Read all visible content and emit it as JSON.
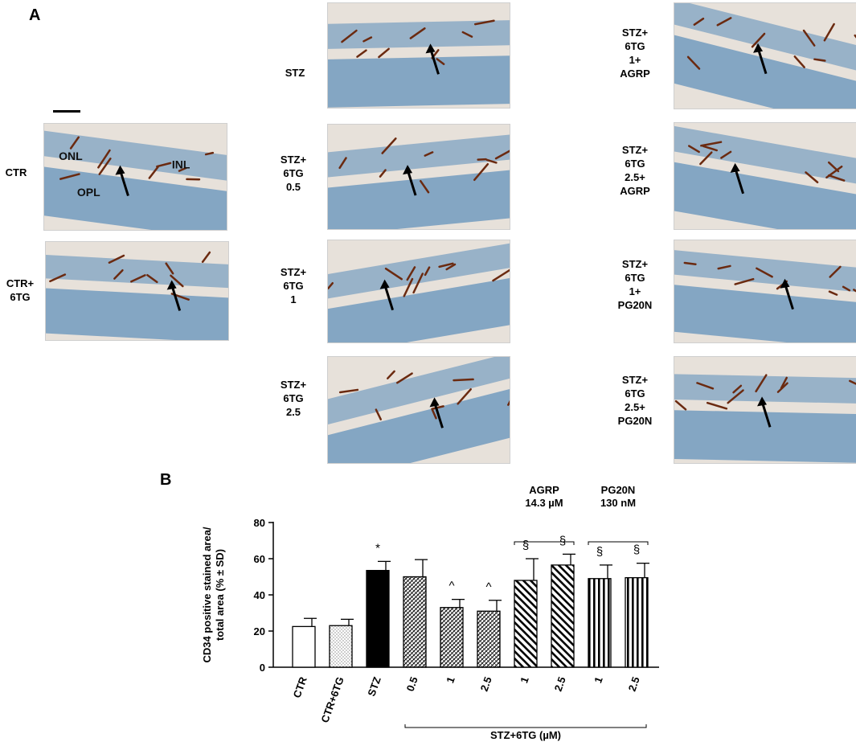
{
  "panel_a": {
    "letter": "A",
    "images": [
      {
        "id": "ctr",
        "label": "CTR",
        "layers": [
          "ONL",
          "INL",
          "OPL"
        ]
      },
      {
        "id": "ctr6tg",
        "label": "CTR+\n6TG"
      },
      {
        "id": "stz",
        "label": "STZ"
      },
      {
        "id": "stz6tg05",
        "label": "STZ+\n6TG\n0.5"
      },
      {
        "id": "stz6tg1",
        "label": "STZ+\n6TG\n1"
      },
      {
        "id": "stz6tg25",
        "label": "STZ+\n6TG\n2.5"
      },
      {
        "id": "agrp1",
        "label": "STZ+\n6TG\n1+\nAGRP"
      },
      {
        "id": "agrp25",
        "label": "STZ+\n6TG\n2.5+\nAGRP"
      },
      {
        "id": "pg1",
        "label": "STZ+\n6TG\n1+\nPG20N"
      },
      {
        "id": "pg25",
        "label": "STZ+\n6TG\n2.5+\nPG20N"
      }
    ]
  },
  "panel_b": {
    "letter": "B"
  },
  "chart_data": {
    "type": "bar",
    "ylabel": "CD34 positive stained area/\ntotal area (% ± SD)",
    "ylim": [
      0,
      80
    ],
    "yticks": [
      0,
      20,
      40,
      60,
      80
    ],
    "categories": [
      "CTR",
      "CTR+6TG",
      "STZ",
      "0.5",
      "1",
      "2.5",
      "1",
      "2.5",
      "1",
      "2.5"
    ],
    "values": [
      22.5,
      23,
      53.5,
      50,
      33,
      31,
      48,
      56.5,
      49,
      49.5
    ],
    "sd": [
      4.5,
      3.5,
      5,
      9.5,
      4.5,
      6,
      12,
      6,
      7.5,
      8
    ],
    "annotations": [
      "",
      "",
      "*",
      "",
      "^",
      "^",
      "§",
      "§",
      "§",
      "§"
    ],
    "patterns": [
      "open",
      "dots",
      "solid",
      "crosshatch",
      "crosshatch",
      "crosshatch",
      "diag",
      "diag",
      "vert",
      "vert"
    ],
    "group_labels": [
      {
        "text": "AGRP\n14.3 µM",
        "from": 6,
        "to": 7
      },
      {
        "text": "PG20N\n130 nM",
        "from": 8,
        "to": 9
      }
    ],
    "bottom_bracket": {
      "text": "STZ+6TG (µM)",
      "from": 3,
      "to": 9
    }
  },
  "colors": {
    "tissue_bg": "#e7e1da",
    "nuclear": "#7ea2c2",
    "vessel": "#6b2a10"
  }
}
